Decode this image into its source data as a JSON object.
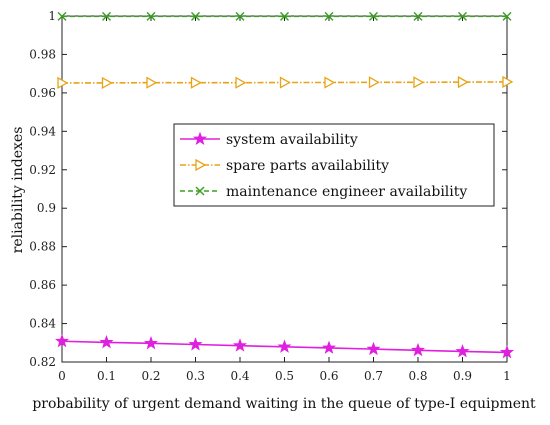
{
  "chart_data": {
    "type": "line",
    "xlabel": "probability of urgent demand waiting in the queue of type-I equipment",
    "ylabel": "reliability indexes",
    "xlim": [
      0,
      1
    ],
    "ylim": [
      0.82,
      1.0
    ],
    "x_ticks": [
      "0",
      "0.1",
      "0.2",
      "0.3",
      "0.4",
      "0.5",
      "0.6",
      "0.7",
      "0.8",
      "0.9",
      "1"
    ],
    "y_ticks": [
      "0.82",
      "0.84",
      "0.86",
      "0.88",
      "0.9",
      "0.92",
      "0.94",
      "0.96",
      "0.98",
      "1"
    ],
    "grid": false,
    "legend_position": "center-right",
    "x": [
      0,
      0.1,
      0.2,
      0.3,
      0.4,
      0.5,
      0.6,
      0.7,
      0.8,
      0.9,
      1.0
    ],
    "series": [
      {
        "name": "system availability",
        "color": "#e020e0",
        "marker": "star",
        "line_style": "solid",
        "values": [
          0.8308,
          0.8302,
          0.8297,
          0.8291,
          0.8285,
          0.8279,
          0.8273,
          0.8267,
          0.8261,
          0.8255,
          0.825
        ]
      },
      {
        "name": "spare parts availability",
        "color": "#e8a317",
        "marker": "triangle-right",
        "line_style": "dash-dot",
        "values": [
          0.9652,
          0.9652,
          0.9653,
          0.9653,
          0.9653,
          0.9654,
          0.9654,
          0.9655,
          0.9655,
          0.9656,
          0.9657
        ]
      },
      {
        "name": "maintenance engineer availability",
        "color": "#3aa020",
        "marker": "x",
        "line_style": "dashed",
        "values": [
          0.9998,
          0.9998,
          0.9998,
          0.9998,
          0.9998,
          0.9998,
          0.9998,
          0.9998,
          0.9998,
          0.9998,
          0.9998
        ]
      }
    ]
  }
}
